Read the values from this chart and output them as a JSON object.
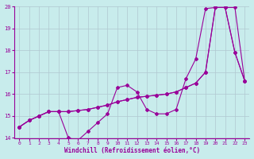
{
  "xlabel": "Windchill (Refroidissement éolien,°C)",
  "bg_color": "#c8ecec",
  "line_color": "#990099",
  "grid_color": "#b0c8d0",
  "x_values": [
    0,
    1,
    2,
    3,
    4,
    5,
    6,
    7,
    8,
    9,
    10,
    11,
    12,
    13,
    14,
    15,
    16,
    17,
    18,
    19,
    20,
    21,
    22,
    23
  ],
  "series1": [
    14.5,
    14.8,
    15.0,
    15.2,
    15.2,
    14.0,
    13.9,
    14.3,
    14.7,
    15.1,
    16.3,
    16.4,
    16.1,
    15.3,
    15.1,
    15.1,
    15.3,
    16.7,
    17.6,
    19.9,
    19.95,
    19.95,
    17.9,
    16.6
  ],
  "series2": [
    14.5,
    14.8,
    15.0,
    15.2,
    15.2,
    15.2,
    15.25,
    15.3,
    15.4,
    15.5,
    15.65,
    15.75,
    15.85,
    15.9,
    15.95,
    16.0,
    16.1,
    16.3,
    16.5,
    17.0,
    19.95,
    19.95,
    19.95,
    16.6
  ],
  "series3": [
    14.5,
    14.8,
    15.0,
    15.2,
    15.2,
    15.2,
    15.25,
    15.3,
    15.4,
    15.5,
    15.65,
    15.75,
    15.85,
    15.9,
    15.95,
    16.0,
    16.1,
    16.3,
    16.5,
    17.0,
    19.95,
    19.95,
    17.9,
    16.6
  ],
  "ylim": [
    14,
    20
  ],
  "xlim": [
    -0.5,
    23.5
  ],
  "yticks": [
    14,
    15,
    16,
    17,
    18,
    19,
    20
  ],
  "xticks": [
    0,
    1,
    2,
    3,
    4,
    5,
    6,
    7,
    8,
    9,
    10,
    11,
    12,
    13,
    14,
    15,
    16,
    17,
    18,
    19,
    20,
    21,
    22,
    23
  ],
  "marker": "D",
  "markersize": 2.0,
  "linewidth": 0.8
}
